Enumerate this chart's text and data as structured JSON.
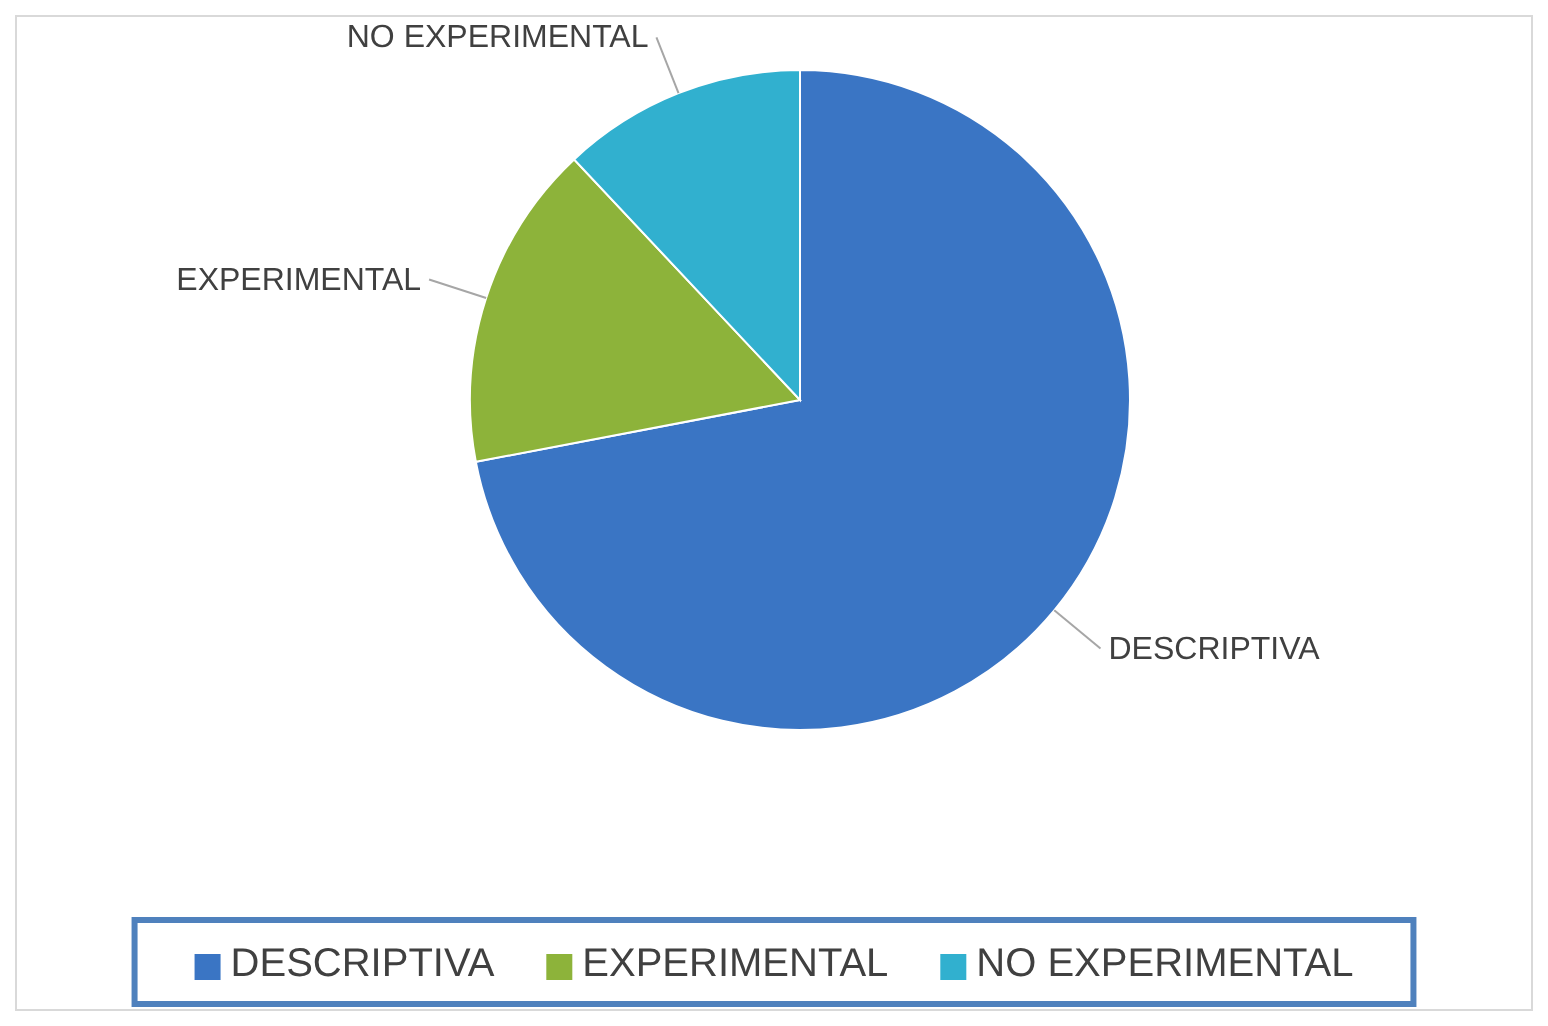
{
  "chart_data": {
    "type": "pie",
    "categories": [
      "DESCRIPTIVA",
      "EXPERIMENTAL",
      "NO EXPERIMENTAL"
    ],
    "values": [
      72,
      16,
      12
    ],
    "colors": [
      "#3a75c4",
      "#8db33a",
      "#31b0cf"
    ],
    "legend": "bottom"
  }
}
